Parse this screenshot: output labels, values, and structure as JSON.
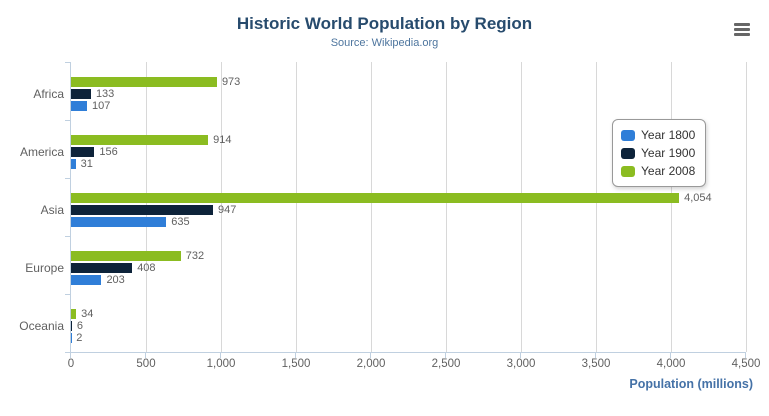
{
  "header": {
    "title": "Historic World Population by Region",
    "subtitle": "Source: Wikipedia.org",
    "menu_icon": "hamburger-menu-icon"
  },
  "chart_data": {
    "type": "bar",
    "orientation": "horizontal",
    "title": "Historic World Population by Region",
    "subtitle": "Source: Wikipedia.org",
    "categories": [
      "Africa",
      "America",
      "Asia",
      "Europe",
      "Oceania"
    ],
    "series": [
      {
        "name": "Year 1800",
        "color": "#2f7ed8",
        "values": [
          107,
          31,
          635,
          203,
          2
        ],
        "labels": [
          "107",
          "31",
          "635",
          "203",
          "2"
        ]
      },
      {
        "name": "Year 1900",
        "color": "#0d233a",
        "values": [
          133,
          156,
          947,
          408,
          6
        ],
        "labels": [
          "133",
          "156",
          "947",
          "408",
          "6"
        ]
      },
      {
        "name": "Year 2008",
        "color": "#8bbc21",
        "values": [
          973,
          914,
          4054,
          732,
          34
        ],
        "labels": [
          "973",
          "914",
          "4,054",
          "732",
          "34"
        ]
      }
    ],
    "bar_order_top_to_bottom": [
      "Year 2008",
      "Year 1900",
      "Year 1800"
    ],
    "xlabel": "Population (millions)",
    "ylabel": "",
    "xlim": [
      0,
      4500
    ],
    "x_tick_step": 500,
    "x_tick_labels": [
      "0",
      "500",
      "1,000",
      "1,500",
      "2,000",
      "2,500",
      "3,000",
      "3,500",
      "4,000",
      "4,500"
    ],
    "grid": true,
    "data_labels": true,
    "legend_position": "right"
  },
  "legend": {
    "items": [
      {
        "label": "Year 1800",
        "color": "#2f7ed8"
      },
      {
        "label": "Year 1900",
        "color": "#0d233a"
      },
      {
        "label": "Year 2008",
        "color": "#8bbc21"
      }
    ]
  },
  "colors": {
    "title": "#274b6d",
    "subtitle": "#4d759e",
    "axis_title": "#4572a7",
    "tick_text": "#606060",
    "gridline": "#d8d8d8",
    "axis_line": "#c0d0e0"
  }
}
